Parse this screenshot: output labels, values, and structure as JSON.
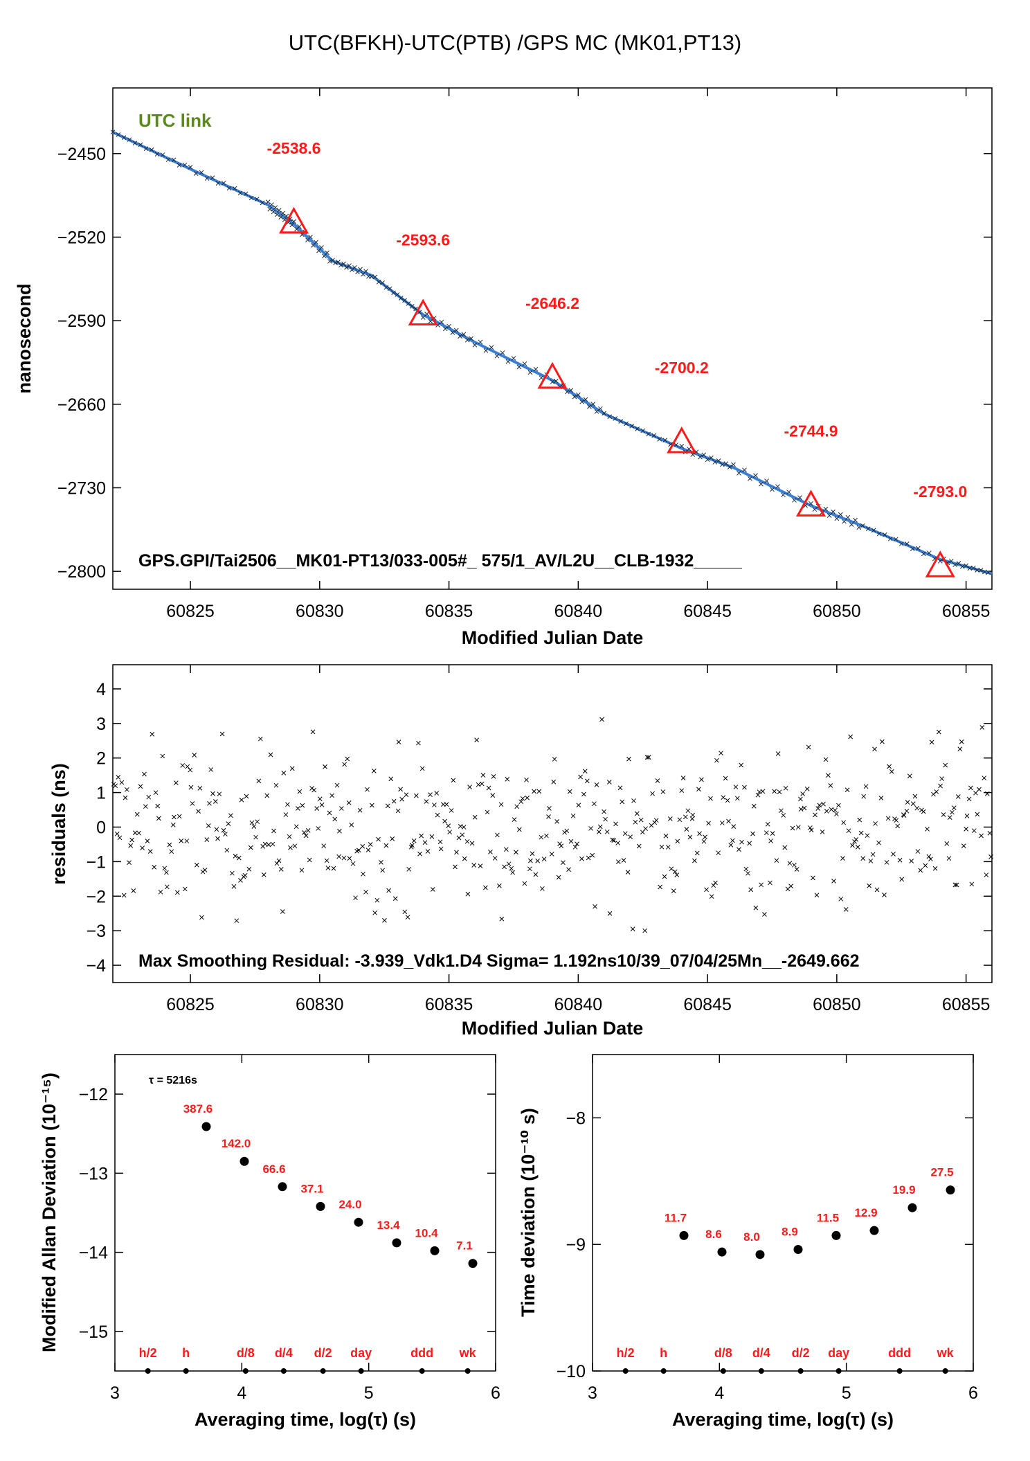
{
  "page_title": "UTC(BFKH)-UTC(PTB)  /GPS  MC  (MK01,PT13)",
  "colors": {
    "series": "#3a7fd4",
    "accent": "#ff1a1a",
    "link": "#5a8a1a",
    "axis": "#000000"
  },
  "chart_data": [
    {
      "type": "line",
      "title": "",
      "xlabel": "Modified Julian Date",
      "ylabel": "nanosecond",
      "xlim": [
        60822,
        60856
      ],
      "ylim": [
        -2815,
        -2395
      ],
      "xticks": [
        60825,
        60830,
        60835,
        60840,
        60845,
        60850,
        60855
      ],
      "xtick_labels": [
        "60825",
        "60830",
        "60835",
        "60840",
        "60845",
        "60850",
        "60855"
      ],
      "yticks": [
        -2450,
        -2520,
        -2590,
        -2660,
        -2730,
        -2800
      ],
      "ytick_labels": [
        "−2450",
        "−2520",
        "−2590",
        "−2660",
        "−2730",
        "−2800"
      ],
      "link_label": "UTC link",
      "footer": "GPS.GPI/Tai2506__MK01-PT13/033-005#_  575/1_AV/L2U__CLB-1932_____",
      "series": [
        {
          "name": "",
          "marker": "x",
          "x": [
            60822,
            60825,
            60828,
            60829,
            60830.5,
            60832,
            60834,
            60836,
            60839,
            60841,
            60844,
            60846,
            60849,
            60851,
            60854,
            60856
          ],
          "y": [
            -2432,
            -2463,
            -2493,
            -2509,
            -2540,
            -2552,
            -2585,
            -2608,
            -2640,
            -2668,
            -2697,
            -2713,
            -2745,
            -2762,
            -2790,
            -2802
          ]
        }
      ],
      "markers": [
        {
          "x": 60829,
          "y": -2508,
          "label": "-2538.6"
        },
        {
          "x": 60834,
          "y": -2585,
          "label": "-2593.6"
        },
        {
          "x": 60839,
          "y": -2638,
          "label": "-2646.2"
        },
        {
          "x": 60844,
          "y": -2692,
          "label": "-2700.2"
        },
        {
          "x": 60849,
          "y": -2745,
          "label": "-2744.9"
        },
        {
          "x": 60854,
          "y": -2796,
          "label": "-2793.0"
        }
      ]
    },
    {
      "type": "scatter",
      "title": "",
      "xlabel": "Modified Julian Date",
      "ylabel": "residuals (ns)",
      "xlim": [
        60822,
        60856
      ],
      "ylim": [
        -4.5,
        4.7
      ],
      "xticks": [
        60825,
        60830,
        60835,
        60840,
        60845,
        60850,
        60855
      ],
      "xtick_labels": [
        "60825",
        "60830",
        "60835",
        "60840",
        "60845",
        "60850",
        "60855"
      ],
      "yticks": [
        4,
        3,
        2,
        1,
        0,
        -1,
        -2,
        -3,
        -4
      ],
      "ytick_labels": [
        "4",
        "3",
        "2",
        "1",
        "0",
        "−1",
        "−2",
        "−3",
        "−4"
      ],
      "footer": "Max Smoothing Residual: -3.939_Vdk1.D4  Sigma= 1.192ns10/39_07/04/25Mn__-2649.662",
      "sigma": 1.192,
      "npoints": 575
    },
    {
      "type": "scatter",
      "title": "",
      "xlabel": "Averaging time, log(τ) (s)",
      "ylabel": "Modified Allan Deviation (10⁻¹⁵)",
      "xlim": [
        3,
        6
      ],
      "ylim": [
        -15.5,
        -11.5
      ],
      "xticks": [
        3,
        4,
        5,
        6
      ],
      "xtick_labels": [
        "3",
        "4",
        "5",
        "6"
      ],
      "yticks": [
        -12,
        -13,
        -14,
        -15
      ],
      "ytick_labels": [
        "−12",
        "−13",
        "−14",
        "−15"
      ],
      "tau_note": "τ = 5216s",
      "x": [
        3.72,
        4.02,
        4.32,
        4.62,
        4.92,
        5.22,
        5.52,
        5.82
      ],
      "y": [
        -12.41,
        -12.85,
        -13.17,
        -13.42,
        -13.62,
        -13.88,
        -13.98,
        -14.14
      ],
      "labels": [
        "387.6",
        "142.0",
        "66.6",
        "37.1",
        "24.0",
        "13.4",
        "10.4",
        "7.1"
      ],
      "marks": [
        {
          "x": 3.26,
          "label": "h/2"
        },
        {
          "x": 3.56,
          "label": "h"
        },
        {
          "x": 4.03,
          "label": "d/8"
        },
        {
          "x": 4.33,
          "label": "d/4"
        },
        {
          "x": 4.64,
          "label": "d/2"
        },
        {
          "x": 4.94,
          "label": "day"
        },
        {
          "x": 5.42,
          "label": "ddd"
        },
        {
          "x": 5.78,
          "label": "wk"
        }
      ]
    },
    {
      "type": "scatter",
      "title": "",
      "xlabel": "Averaging time, log(τ) (s)",
      "ylabel": "Time deviation (10⁻¹⁰ s)",
      "xlim": [
        3,
        6
      ],
      "ylim": [
        -10,
        -7.5
      ],
      "xticks": [
        3,
        4,
        5,
        6
      ],
      "xtick_labels": [
        "3",
        "4",
        "5",
        "6"
      ],
      "yticks": [
        -8,
        -9,
        -10
      ],
      "ytick_labels": [
        "−8",
        "−9",
        "−10"
      ],
      "x": [
        3.72,
        4.02,
        4.32,
        4.62,
        4.92,
        5.22,
        5.52,
        5.82
      ],
      "y": [
        -8.93,
        -9.06,
        -9.08,
        -9.04,
        -8.93,
        -8.89,
        -8.71,
        -8.57
      ],
      "labels": [
        "11.7",
        "8.6",
        "8.0",
        "8.9",
        "11.5",
        "12.9",
        "19.9",
        "27.5"
      ],
      "marks": [
        {
          "x": 3.26,
          "label": "h/2"
        },
        {
          "x": 3.56,
          "label": "h"
        },
        {
          "x": 4.03,
          "label": "d/8"
        },
        {
          "x": 4.33,
          "label": "d/4"
        },
        {
          "x": 4.64,
          "label": "d/2"
        },
        {
          "x": 4.94,
          "label": "day"
        },
        {
          "x": 5.42,
          "label": "ddd"
        },
        {
          "x": 5.78,
          "label": "wk"
        }
      ]
    }
  ]
}
